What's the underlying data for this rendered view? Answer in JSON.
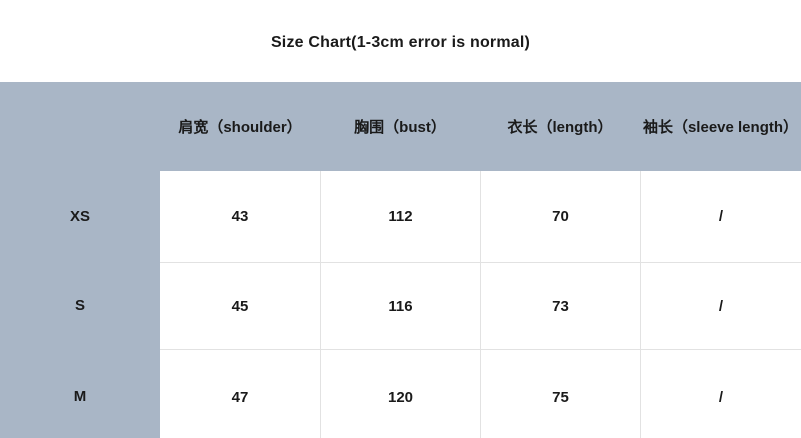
{
  "title": "Size Chart(1-3cm error is normal)",
  "colors": {
    "panel_bg": "#a9b6c6",
    "cell_bg": "#ffffff",
    "grid_line": "#e2e2e2",
    "text": "#1a1a1a"
  },
  "chart_data": {
    "type": "table",
    "title": "Size Chart(1-3cm error is normal)",
    "columns": [
      "肩宽（shoulder）",
      "胸围（bust）",
      "衣长（length）",
      "袖长（sleeve length）"
    ],
    "rows": [
      {
        "size": "XS",
        "values": [
          "43",
          "112",
          "70",
          "/"
        ]
      },
      {
        "size": "S",
        "values": [
          "45",
          "116",
          "73",
          "/"
        ]
      },
      {
        "size": "M",
        "values": [
          "47",
          "120",
          "75",
          "/"
        ]
      }
    ]
  }
}
